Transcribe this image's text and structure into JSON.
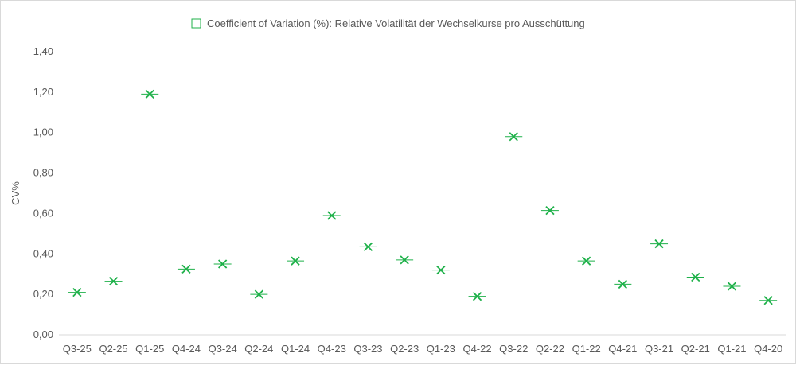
{
  "chart_data": {
    "type": "scatter",
    "marker": "x-with-dash",
    "series": [
      {
        "name": "Coefficient of Variation (%): Relative Volatilität der Wechselkurse pro Ausschüttung",
        "color": "#1fb14a",
        "values": [
          0.21,
          0.265,
          1.19,
          0.325,
          0.35,
          0.2,
          0.365,
          0.59,
          0.435,
          0.37,
          0.32,
          0.19,
          0.98,
          0.615,
          0.365,
          0.25,
          0.45,
          0.285,
          0.24,
          0.17
        ]
      }
    ],
    "categories": [
      "Q3-25",
      "Q2-25",
      "Q1-25",
      "Q4-24",
      "Q3-24",
      "Q2-24",
      "Q1-24",
      "Q4-23",
      "Q3-23",
      "Q2-23",
      "Q1-23",
      "Q4-22",
      "Q3-22",
      "Q2-22",
      "Q1-22",
      "Q4-21",
      "Q3-21",
      "Q2-21",
      "Q1-21",
      "Q4-20"
    ],
    "ylabel": "CV%",
    "ylim": [
      0,
      1.4
    ],
    "yticks": [
      "0,00",
      "0,20",
      "0,40",
      "0,60",
      "0,80",
      "1,00",
      "1,20",
      "1,40"
    ],
    "grid": false,
    "legend_position": "top"
  }
}
